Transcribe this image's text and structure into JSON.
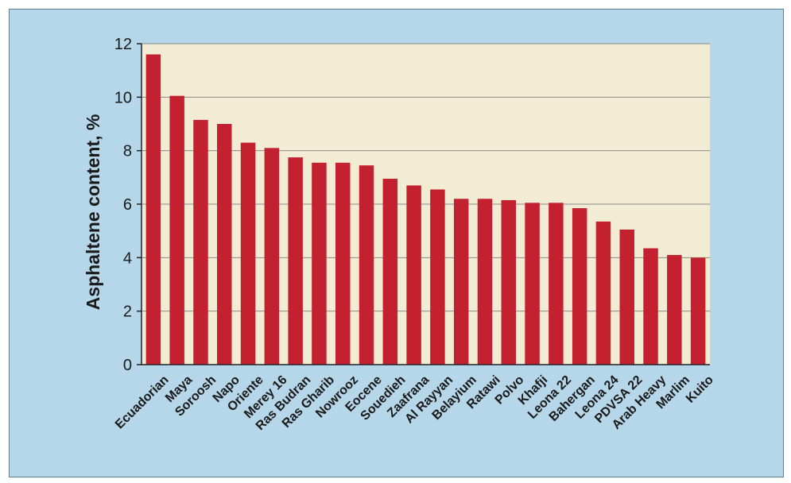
{
  "chart_data": {
    "type": "bar",
    "title": "",
    "xlabel": "",
    "ylabel": "Asphaltene content, %",
    "ylim": [
      0,
      12
    ],
    "yticks": [
      0,
      2,
      4,
      6,
      8,
      10,
      12
    ],
    "grid": true,
    "categories": [
      "Ecuadorian",
      "Maya",
      "Soroosh",
      "Napo",
      "Oriente",
      "Merey 16",
      "Ras Budran",
      "Ras Gharib",
      "Nowrooz",
      "Eocene",
      "Souedieh",
      "Zaafrana",
      "Al Rayyan",
      "Belayium",
      "Ratawi",
      "Polvo",
      "Khafji",
      "Leona 22",
      "Bahergan",
      "Leona 24",
      "PDVSA 22",
      "Arab Heavy",
      "Marlim",
      "Kuito"
    ],
    "values": [
      11.6,
      10.05,
      9.15,
      9.0,
      8.3,
      8.1,
      7.75,
      7.55,
      7.55,
      7.45,
      6.95,
      6.7,
      6.55,
      6.2,
      6.2,
      6.15,
      6.05,
      6.05,
      5.85,
      5.35,
      5.05,
      4.35,
      4.1,
      4.0
    ],
    "colors": {
      "background": "#b6d6e9",
      "plot_background": "#f3ecd4",
      "bar": "#c3212f",
      "grid": "#8a8a8a",
      "axis": "#222222"
    }
  }
}
